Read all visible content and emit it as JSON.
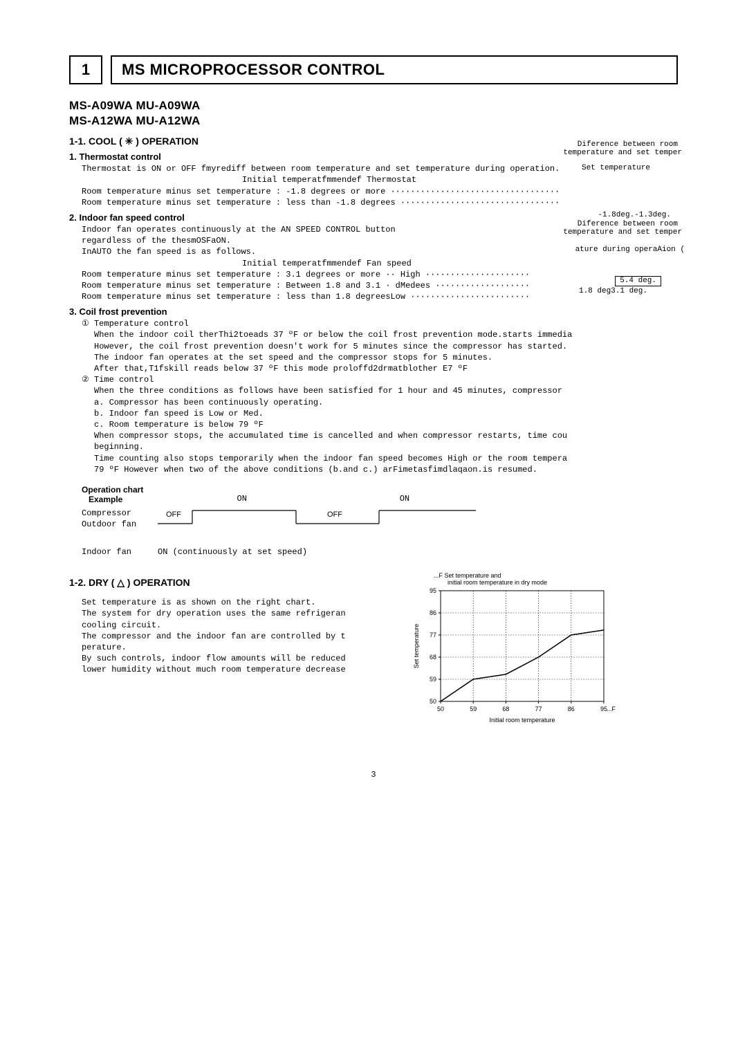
{
  "header": {
    "section_number": "1",
    "title": "MS MICROPROCESSOR CONTROL"
  },
  "models": {
    "line1": "MS-A09WA  MU-A09WA",
    "line2": "MS-A12WA  MU-A12WA"
  },
  "s11": {
    "heading": "1-1. COOL ( ✳ ) OPERATION",
    "thermostat": {
      "heading": "1. Thermostat control",
      "line1": "Thermostat is ON or OFF fmyrediff between room temperature and set temperature during operation.",
      "line2": "Initial temperatfmmendef        Thermostat",
      "line3": "Room temperature minus set temperature : -1.8 degrees or more ··································",
      "line4": "Room temperature minus set temperature : less than -1.8 degrees ································",
      "overlay": {
        "difference": "Diference between room",
        "temp_set": "temperature and set temper",
        "set_temp": "Set temperature",
        "range": "-1.8deg.-1.3deg."
      }
    },
    "fan": {
      "heading": "2. Indoor fan speed control",
      "line1": "Indoor fan operates continuously at the AN SPEED CONTROL button",
      "line2": "regardless of the thesmOSFaON.",
      "line3": "InAUTO the fan speed is as follows.",
      "line3b": "Initial temperatfmmendef     Fan speed",
      "line4": "Room temperature minus set temperature : 3.1 degrees or more ·· High ·····················",
      "line5": "Room temperature minus set temperature : Between 1.8 and 3.1 · dMedees ···················",
      "line6": "Room temperature minus set temperature : less than 1.8 degreesLow ························",
      "overlay": {
        "difference": "Diference between room",
        "temp_set": "temperature and set temper",
        "during_op": "ature during operaAion (",
        "val54": "5.4 deg.",
        "val18": "1.8 deg3.1 deg."
      }
    },
    "coil": {
      "heading": "3. Coil frost prevention",
      "tc_head": "① Temperature control",
      "tc_l1": "When the indoor coil therThi2toeads 37 ºF or below the coil frost prevention mode.starts immedia",
      "tc_l2": "However, the coil frost prevention doesn't work for 5 minutes since the compressor has started.",
      "tc_l3": "The indoor fan operates at the set speed and the compressor stops for 5 minutes.",
      "tc_l4": "After that,T1fskill reads below 37 ºF this mode proloffd2drmatblother E7 ºF",
      "time_head": "② Time control",
      "time_l1": "When the three conditions as follows have been satisfied for 1 hour and 45 minutes, compressor",
      "time_l2": "a. Compressor has been continuously operating.",
      "time_l3": "b. Indoor fan speed is Low or Med.",
      "time_l4": "c. Room temperature is below 79 ºF",
      "time_l5": "When compressor stops, the accumulated time is cancelled and when compressor restarts, time cou",
      "time_l6": "beginning.",
      "time_l7": "Time counting also stops temporarily when the indoor fan speed becomes High or the room tempera",
      "time_l8": "79 ºF However when two of the above conditions (b.and c.) arFimetasfimdlaqaon.is resumed."
    },
    "opchart": {
      "title1": "Operation chart",
      "title2": "Example",
      "on": "ON",
      "off": "OFF",
      "compressor": "Compressor",
      "outdoor": "Outdoor fan",
      "indoor": "Indoor fan",
      "indoor_note": "ON  (continuously at set speed)"
    }
  },
  "s12": {
    "heading": "1-2. DRY ( △ ) OPERATION",
    "l1": "Set temperature is as shown on the right chart.",
    "l2": "The system for dry operation uses the same refrigeran",
    "l3": "cooling circuit.",
    "l4": "The compressor and the indoor fan are controlled by t",
    "l5": "perature.",
    "l6": "By such controls, indoor flow amounts will be reduced",
    "l7": "lower humidity without much room temperature decrease",
    "chart": {
      "title1": "Set temperature and",
      "title2": "initial room temperature in dry mode",
      "ylabel": "Set temperature",
      "xlabel": "Initial room temperature",
      "unit": "...F",
      "yticks": [
        "50",
        "59",
        "68",
        "77",
        "86",
        "95"
      ],
      "xticks": [
        "50",
        "59",
        "68",
        "77",
        "86",
        "95"
      ],
      "line_points": [
        [
          50,
          50
        ],
        [
          59,
          59
        ],
        [
          68,
          61
        ],
        [
          77,
          68
        ],
        [
          86,
          77
        ],
        [
          95,
          79
        ]
      ],
      "colors": {
        "grid": "#000000",
        "line": "#000000",
        "text": "#000000",
        "bg": "#ffffff"
      },
      "font_size": 9
    }
  },
  "page": "3"
}
